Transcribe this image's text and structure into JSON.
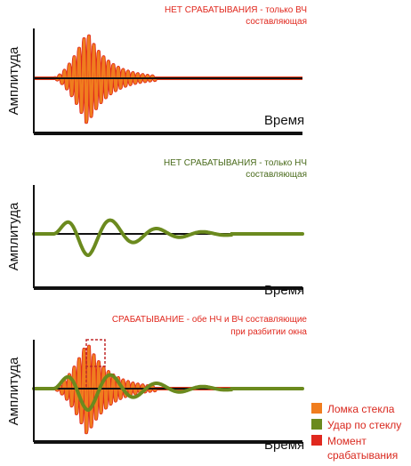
{
  "colors": {
    "hf": "#f07d1e",
    "hf_outline": "#e0281e",
    "lf": "#6b8a1e",
    "lf_outline": "#5a7a14",
    "trigger": "#e0281e",
    "axis": "#111111",
    "caption_red": "#e0281e",
    "caption_green": "#4a6b1c"
  },
  "panels": [
    {
      "caption_line1": "НЕТ СРАБАТЫВАНИЯ - только ВЧ",
      "caption_line2": "составляющая",
      "ylabel": "Амплитуда",
      "xlabel": "Время",
      "signals": [
        "hf"
      ]
    },
    {
      "caption_line1": "НЕТ СРАБАТЫВАНИЯ - только НЧ",
      "caption_line2": "составляющая",
      "ylabel": "Амплитуда",
      "xlabel": "Время",
      "signals": [
        "lf"
      ]
    },
    {
      "caption_line1": "СРАБАТЫВАНИЕ - обе НЧ и ВЧ составляющие",
      "caption_line2": "при разбитии окна",
      "ylabel": "Амплитуда",
      "xlabel": "Время",
      "signals": [
        "hf",
        "lf"
      ],
      "trigger_marker": true
    }
  ],
  "legend": [
    {
      "label": "Ломка стекла",
      "color": "#f07d1e"
    },
    {
      "label": "Удар по стеклу",
      "color": "#6b8a1e"
    },
    {
      "label": "Момент",
      "label2": "срабатывания",
      "color": "#e0281e"
    }
  ]
}
